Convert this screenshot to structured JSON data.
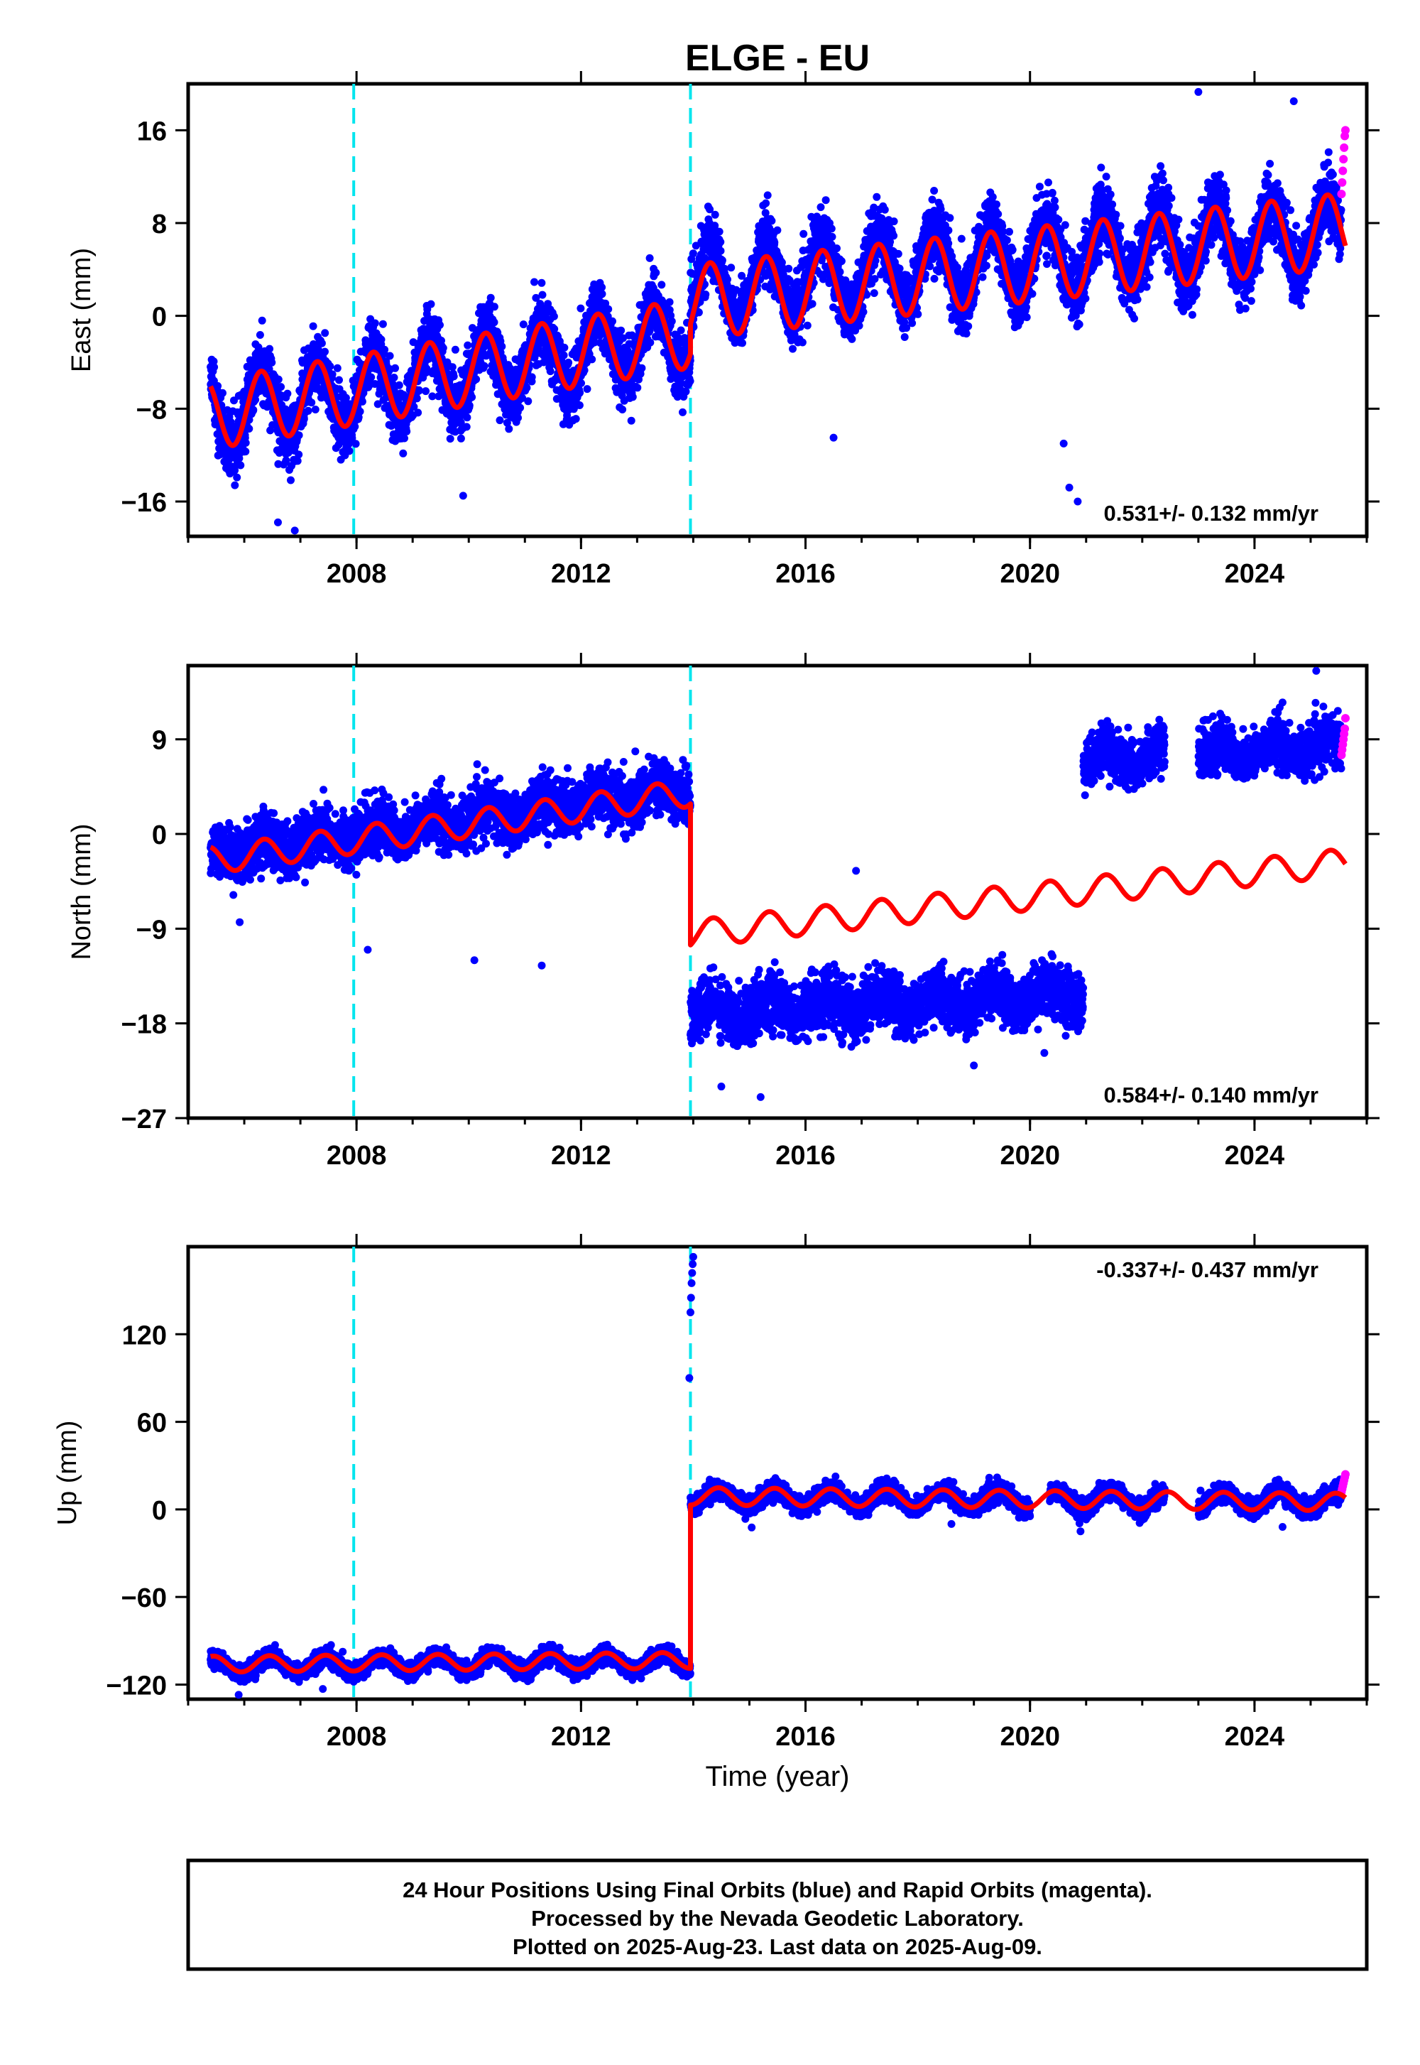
{
  "title": "ELGE - EU",
  "colors": {
    "final_orbits": "#0000ff",
    "rapid_orbits": "#ff00ff",
    "model": "#ff0000",
    "events": "#00e5ee"
  },
  "x_axis": {
    "label": "Time (year)",
    "range": [
      2005.0,
      2026.0
    ],
    "ticks": [
      2008,
      2012,
      2016,
      2020,
      2024
    ],
    "tick_labels": [
      "2008",
      "2012",
      "2016",
      "2020",
      "2024"
    ],
    "minor_step": 1
  },
  "events": [
    2007.95,
    2013.95
  ],
  "chart_data": [
    {
      "type": "scatter",
      "ylabel": "East (mm)",
      "ylim": [
        -19,
        20
      ],
      "yticks": [
        -16,
        -8,
        0,
        8,
        16
      ],
      "ytick_labels": [
        "−16",
        "−8",
        "0",
        "8",
        "16"
      ],
      "rate_text": "0.531+/- 0.132 mm/yr",
      "rate_position": "bottom-right",
      "series": [
        {
          "style": "points",
          "color_key": "final_orbits",
          "data_start": 2005.4,
          "data_end": 2025.55,
          "gaps": [],
          "segments": [
            {
              "start": 2005.4,
              "end": 2013.95,
              "offset": -8.5,
              "trend": 0.82,
              "amplitude": 3.0,
              "scatter": 2.0
            },
            {
              "start": 2013.95,
              "end": 2020.9,
              "offset": 2.5,
              "trend": 0.42,
              "amplitude": 3.2,
              "scatter": 2.0
            },
            {
              "start": 2020.9,
              "end": 2025.55,
              "offset": 5.5,
              "trend": 0.35,
              "amplitude": 3.0,
              "scatter": 2.0
            }
          ],
          "outliers": [
            [
              2006.6,
              -17.8
            ],
            [
              2006.9,
              -18.5
            ],
            [
              2009.9,
              -15.5
            ],
            [
              2016.5,
              -10.5
            ],
            [
              2020.6,
              -11
            ],
            [
              2020.7,
              -14.8
            ],
            [
              2020.85,
              -16
            ],
            [
              2023.0,
              19.3
            ],
            [
              2024.7,
              18.5
            ]
          ]
        },
        {
          "style": "points",
          "color_key": "rapid_orbits",
          "x_range": [
            2025.55,
            2025.62
          ],
          "values": [
            10.5,
            11.5,
            12.5,
            13.5,
            14.5,
            15.5,
            16.0
          ]
        },
        {
          "style": "line",
          "color_key": "model",
          "segments": [
            {
              "start": 2005.4,
              "end": 2013.95,
              "offset": -8.5,
              "trend": 0.82,
              "amplitude": 3.0
            },
            {
              "start": 2013.95,
              "end": 2025.62,
              "offset": 1.2,
              "trend": 0.531,
              "amplitude": 3.2
            }
          ]
        }
      ]
    },
    {
      "type": "scatter",
      "ylabel": "North (mm)",
      "ylim": [
        -27,
        16
      ],
      "yticks": [
        -27,
        -18,
        -9,
        0,
        9
      ],
      "ytick_labels": [
        "−27",
        "−18",
        "−9",
        "0",
        "9"
      ],
      "rate_text": "0.584+/- 0.140 mm/yr",
      "rate_position": "bottom-right",
      "series": [
        {
          "style": "points",
          "color_key": "final_orbits",
          "data_start": 2005.4,
          "data_end": 2025.55,
          "gaps": [
            [
              2022.4,
              2023.0
            ]
          ],
          "segments": [
            {
              "start": 2005.4,
              "end": 2013.95,
              "offset": -2.0,
              "trend": 0.75,
              "amplitude": 0.8,
              "scatter": 1.8
            },
            {
              "start": 2013.95,
              "end": 2020.95,
              "offset": -17.0,
              "trend": 0.25,
              "amplitude": 0.8,
              "scatter": 1.8
            },
            {
              "start": 2020.95,
              "end": 2025.55,
              "offset": 7.0,
              "trend": 0.3,
              "amplitude": 0.8,
              "scatter": 1.6
            }
          ],
          "outliers": [
            [
              2008.2,
              -11
            ],
            [
              2010.1,
              -12
            ],
            [
              2011.3,
              -12.5
            ],
            [
              2014.5,
              -24
            ],
            [
              2015.2,
              -25
            ],
            [
              2016.9,
              -3.5
            ],
            [
              2019.0,
              -22
            ],
            [
              2020.85,
              -16
            ],
            [
              2024.5,
              12.5
            ],
            [
              2025.1,
              15.5
            ]
          ]
        },
        {
          "style": "points",
          "color_key": "rapid_orbits",
          "x_range": [
            2025.55,
            2025.62
          ],
          "values": [
            7.5,
            8.0,
            8.5,
            9.0,
            9.5,
            10.0,
            11.0
          ]
        },
        {
          "style": "line",
          "color_key": "model",
          "segments": [
            {
              "start": 2005.4,
              "end": 2013.95,
              "offset": -2.5,
              "trend": 0.75,
              "amplitude": 1.3
            },
            {
              "start": 2013.95,
              "end": 2025.62,
              "offset": -9.5,
              "trend": 0.584,
              "amplitude": 1.3
            }
          ]
        }
      ]
    },
    {
      "type": "scatter",
      "ylabel": "Up (mm)",
      "xlabel": "Time (year)",
      "ylim": [
        -130,
        180
      ],
      "yticks": [
        -120,
        -60,
        0,
        60,
        120
      ],
      "ytick_labels": [
        "−120",
        "−60",
        "0",
        "60",
        "120"
      ],
      "rate_text": "-0.337+/- 0.437 mm/yr",
      "rate_position": "top-right",
      "series": [
        {
          "style": "points",
          "color_key": "final_orbits",
          "data_start": 2005.4,
          "data_end": 2025.55,
          "gaps": [
            [
              2020.0,
              2020.35
            ],
            [
              2022.4,
              2023.0
            ]
          ],
          "segments": [
            {
              "start": 2005.4,
              "end": 2013.95,
              "offset": -107,
              "trend": 0.3,
              "amplitude": 5.5,
              "scatter": 4.0
            },
            {
              "start": 2013.95,
              "end": 2025.55,
              "offset": 8,
              "trend": -0.2,
              "amplitude": 6.0,
              "scatter": 4.5
            }
          ],
          "outliers": [
            [
              2005.9,
              -127
            ],
            [
              2007.4,
              -123
            ],
            [
              2007.95,
              -118
            ],
            [
              2013.93,
              90
            ],
            [
              2013.95,
              135
            ],
            [
              2013.96,
              145
            ],
            [
              2013.97,
              155
            ],
            [
              2013.98,
              162
            ],
            [
              2013.99,
              168
            ],
            [
              2014.0,
              173
            ],
            [
              2018.6,
              -10
            ],
            [
              2020.9,
              -15
            ],
            [
              2024.5,
              -12
            ]
          ]
        },
        {
          "style": "points",
          "color_key": "rapid_orbits",
          "x_range": [
            2025.55,
            2025.62
          ],
          "values": [
            12,
            14,
            16,
            18,
            20,
            22,
            24
          ]
        },
        {
          "style": "line",
          "color_key": "model",
          "segments": [
            {
              "start": 2005.4,
              "end": 2013.95,
              "offset": -106,
              "trend": 0.3,
              "amplitude": 5.5
            },
            {
              "start": 2013.95,
              "end": 2025.62,
              "offset": 9,
              "trend": -0.337,
              "amplitude": 6.0
            }
          ]
        }
      ]
    }
  ],
  "footer": {
    "line1": "24 Hour Positions Using Final Orbits (blue) and Rapid Orbits (magenta).",
    "line2": "Processed by the Nevada Geodetic Laboratory.",
    "line3": "Plotted on 2025-Aug-23. Last data on 2025-Aug-09."
  }
}
